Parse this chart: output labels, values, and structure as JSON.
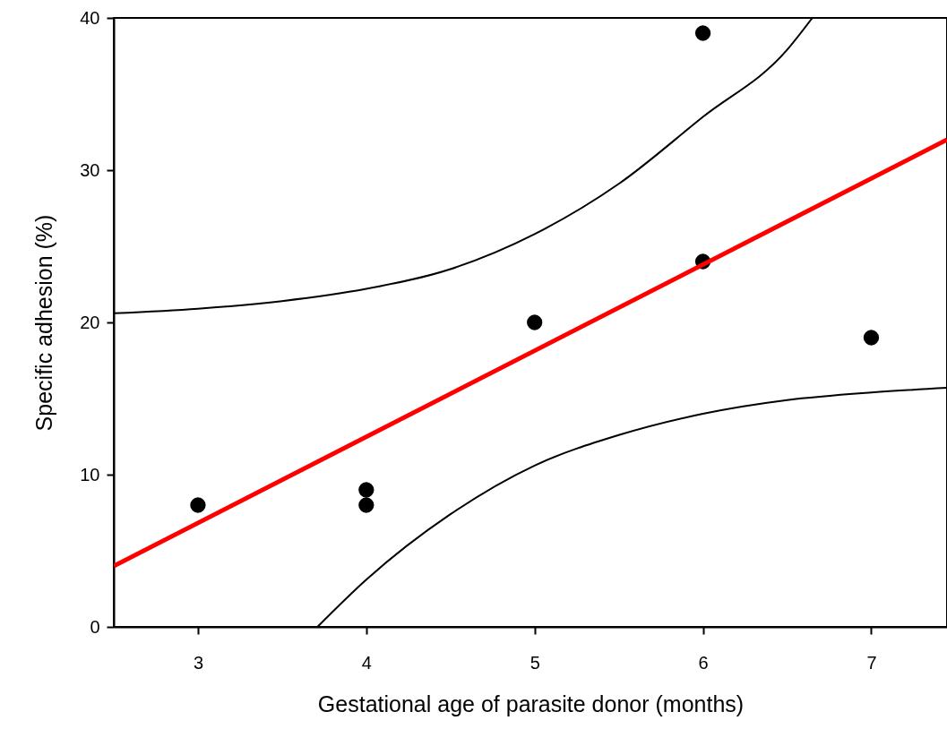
{
  "chart_data": {
    "type": "scatter",
    "xlabel": "Gestational age of parasite donor (months)",
    "ylabel": "Specific adhesion (%)",
    "xlim": [
      2.5,
      7.45
    ],
    "ylim": [
      0,
      40
    ],
    "xticks": [
      3,
      4,
      5,
      6,
      7
    ],
    "yticks": [
      0,
      10,
      20,
      30,
      40
    ],
    "grid": false,
    "series": [
      {
        "type": "scatter",
        "marker": "circle",
        "color": "#000000",
        "x": [
          3,
          4,
          4,
          5,
          6,
          6,
          7
        ],
        "values": [
          8,
          9,
          8,
          20,
          39,
          24,
          19
        ]
      },
      {
        "type": "line",
        "color": "#ff0000",
        "x": [
          2.5,
          7.45
        ],
        "values": [
          4.0,
          32.0
        ]
      },
      {
        "type": "line",
        "color": "#000000",
        "x": [
          2.5,
          3,
          3.5,
          4,
          4.5,
          5,
          5.5,
          6,
          6.5,
          6.65
        ],
        "values": [
          20.6,
          20.9,
          21.4,
          22.2,
          23.5,
          25.8,
          29.1,
          33.5,
          37.9,
          40
        ]
      },
      {
        "type": "line",
        "color": "#000000",
        "x": [
          3.71,
          4,
          4.5,
          5,
          5.5,
          6,
          6.5,
          7,
          7.45
        ],
        "values": [
          0,
          3.1,
          7.4,
          10.6,
          12.6,
          14.0,
          14.9,
          15.4,
          15.7
        ]
      }
    ]
  }
}
